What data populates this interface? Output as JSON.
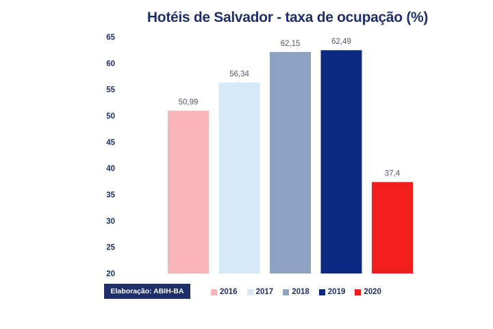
{
  "chart_data": {
    "type": "bar",
    "title": "Hotéis de Salvador - taxa de ocupação (%)",
    "xlabel": "",
    "ylabel": "",
    "categories": [
      "2016",
      "2017",
      "2018",
      "2019",
      "2020"
    ],
    "values": [
      50.99,
      56.34,
      62.15,
      62.49,
      37.4
    ],
    "data_labels": [
      "50,99",
      "56,34",
      "62,15",
      "62,49",
      "37,4"
    ],
    "colors": [
      "#f8b4b8",
      "#d4e8f8",
      "#8da2c0",
      "#0c2a7f",
      "#f21e1e"
    ],
    "ylim": [
      20,
      65
    ],
    "yticks": [
      65,
      60,
      55,
      50,
      45,
      40,
      35,
      30,
      25,
      20
    ],
    "grid": false,
    "legend_position": "bottom"
  },
  "footer": {
    "credit": "Elaboração: ABIH-BA"
  },
  "legend": [
    {
      "label": "2016",
      "color": "#f8b4b8"
    },
    {
      "label": "2017",
      "color": "#d4e8f8"
    },
    {
      "label": "2018",
      "color": "#8da2c0"
    },
    {
      "label": "2019",
      "color": "#0c2a7f"
    },
    {
      "label": "2020",
      "color": "#f21e1e"
    }
  ]
}
